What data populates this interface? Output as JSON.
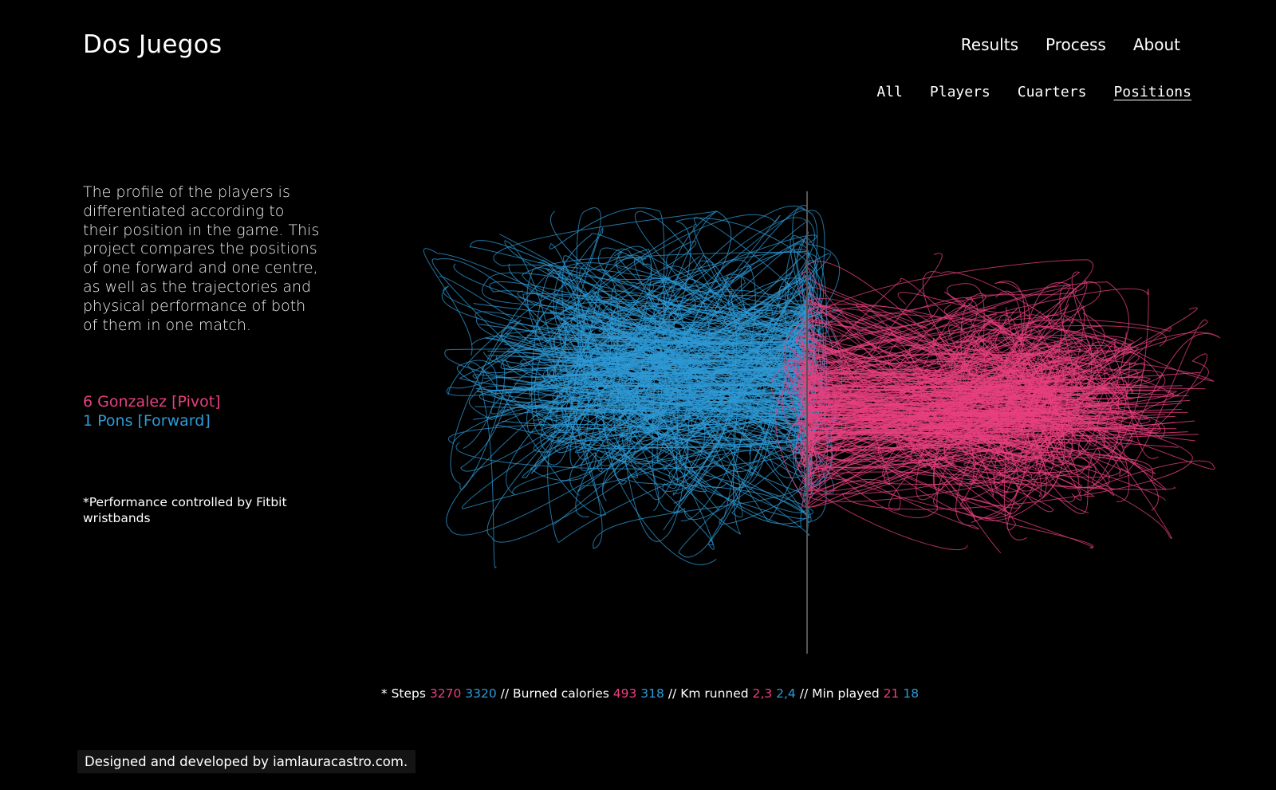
{
  "header": {
    "title": "Dos Juegos",
    "nav": [
      "Results",
      "Process",
      "About"
    ],
    "subnav": [
      "All",
      "Players",
      "Cuarters",
      "Positions"
    ],
    "subnav_active": "Positions"
  },
  "description": "The profile of the players is differentiated according to their position in the game. This project compares the positions of one forward and one centre, as well as the trajectories and physical performance of both of them in one match.",
  "legend": {
    "pivot": "6 Gonzalez [Pivot]",
    "forward": "1 Pons [Forward]"
  },
  "note": "*Performance controlled by Fitbit wristbands",
  "stats": {
    "prefix": "* Steps",
    "steps_pivot": "3270",
    "steps_forward": "3320",
    "calories_label": "// Burned calories",
    "calories_pivot": "493",
    "calories_forward": "318",
    "km_label": "// Km runned",
    "km_pivot": "2,3",
    "km_forward": "2,4",
    "min_label": "// Min played",
    "min_pivot": "21",
    "min_forward": "18"
  },
  "footer": "Designed and developed by iamlauracastro.com.",
  "colors": {
    "background": "#000000",
    "pivot": "#e8407f",
    "forward": "#2e9ad6",
    "divider": "#555555"
  }
}
